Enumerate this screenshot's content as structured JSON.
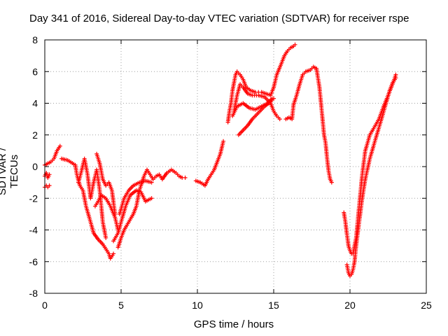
{
  "chart_data": {
    "type": "scatter",
    "title": "Day 341 of 2016, Sidereal Day-to-day VTEC variation (SDTVAR) for receiver rspe",
    "xlabel": "GPS time / hours",
    "ylabel": "SDTVAR / TECUs",
    "xlim": [
      0,
      25
    ],
    "ylim": [
      -8,
      8
    ],
    "xticks": [
      "0",
      "5",
      "10",
      "15",
      "20",
      "25"
    ],
    "yticks": [
      "-8",
      "-6",
      "-4",
      "-2",
      "0",
      "2",
      "4",
      "6",
      "8"
    ],
    "grid": true,
    "marker": "+",
    "color": "#ff0000",
    "series": [
      {
        "x": [
          0.0,
          0.1,
          0.2,
          0.3
        ],
        "y": [
          -0.6,
          -0.4,
          -0.7,
          -0.5
        ]
      },
      {
        "x": [
          0.0,
          0.1,
          0.2,
          0.3
        ],
        "y": [
          -1.3,
          -1.2,
          -1.3,
          -1.2
        ]
      },
      {
        "x": [
          0.0,
          0.2,
          0.4,
          0.6,
          0.8,
          1.0
        ],
        "y": [
          0.1,
          0.2,
          0.3,
          0.5,
          1.0,
          1.3
        ]
      },
      {
        "x": [
          1.1,
          1.5,
          2.0,
          2.1,
          2.3,
          2.5,
          2.7,
          3.0,
          3.2,
          3.5,
          3.8,
          4.0,
          4.2,
          4.3,
          4.5
        ],
        "y": [
          0.5,
          0.4,
          0.1,
          -0.5,
          -1.2,
          -1.5,
          -2.5,
          -3.5,
          -4.2,
          -4.6,
          -4.9,
          -5.2,
          -5.5,
          -5.8,
          -5.5
        ]
      },
      {
        "x": [
          2.2,
          2.4,
          2.6,
          2.8,
          3.0,
          3.2,
          3.4,
          3.6,
          3.8,
          4.0
        ],
        "y": [
          -1.0,
          -0.3,
          0.5,
          -0.5,
          -2.0,
          -1.0,
          -0.2,
          -1.5,
          -3.5,
          -4.5
        ]
      },
      {
        "x": [
          3.3,
          3.5,
          3.7,
          4.0,
          4.3,
          4.6,
          4.8
        ],
        "y": [
          -2.5,
          -2.2,
          -1.8,
          -2.0,
          -2.5,
          -3.2,
          -4.0
        ]
      },
      {
        "x": [
          3.4,
          3.6,
          3.8,
          4.0,
          4.2,
          4.4,
          4.6
        ],
        "y": [
          0.8,
          0.2,
          -0.8,
          -1.2,
          -1.0,
          -1.5,
          -3.0
        ]
      },
      {
        "x": [
          4.8,
          5.0,
          5.2,
          5.5,
          5.8,
          6.0,
          6.2,
          6.5,
          6.7,
          6.9,
          7.1,
          7.3,
          7.5,
          7.7,
          8.0,
          8.3,
          8.6,
          8.8,
          9.0,
          9.2
        ],
        "y": [
          -5.1,
          -4.5,
          -4.0,
          -3.5,
          -3.0,
          -2.5,
          -1.5,
          -0.6,
          -0.2,
          -0.5,
          -0.8,
          -0.6,
          -0.5,
          -0.8,
          -0.4,
          -0.2,
          -0.4,
          -0.6,
          -0.7,
          -0.7
        ]
      },
      {
        "x": [
          4.5,
          4.8,
          5.0,
          5.3,
          5.6,
          6.0,
          6.3,
          6.6,
          7.0
        ],
        "y": [
          -4.7,
          -4.2,
          -3.5,
          -2.5,
          -1.8,
          -1.5,
          -1.6,
          -2.2,
          -2.0
        ]
      },
      {
        "x": [
          4.9,
          5.2,
          5.5,
          5.8,
          6.2,
          6.6,
          7.0
        ],
        "y": [
          -3.0,
          -2.0,
          -1.5,
          -1.2,
          -1.0,
          -0.9,
          -1.0
        ]
      },
      {
        "x": [
          9.9,
          10.2,
          10.5,
          10.7,
          10.9,
          11.1,
          11.3,
          11.5,
          11.7
        ],
        "y": [
          -0.9,
          -1.0,
          -1.2,
          -0.8,
          -0.5,
          -0.2,
          0.3,
          0.8,
          1.6
        ]
      },
      {
        "x": [
          12.0,
          12.1,
          12.2,
          12.3,
          12.4,
          12.5,
          12.6,
          12.8,
          13.0,
          13.2,
          13.5,
          13.8,
          14.0,
          14.2,
          14.5,
          14.8,
          15.0,
          15.2,
          15.5,
          15.7,
          15.9,
          16.0,
          16.1,
          16.3,
          16.4
        ],
        "y": [
          2.8,
          3.5,
          4.0,
          4.8,
          5.3,
          5.8,
          6.0,
          5.8,
          5.5,
          5.0,
          4.8,
          4.7,
          4.7,
          4.7,
          4.6,
          4.5,
          5.0,
          5.8,
          6.5,
          7.0,
          7.3,
          7.4,
          7.5,
          7.6,
          7.7
        ]
      },
      {
        "x": [
          12.4,
          12.6,
          12.8,
          13.0,
          13.3,
          13.6,
          14.0,
          14.4,
          14.8,
          15.0,
          15.2,
          15.4
        ],
        "y": [
          3.5,
          4.5,
          5.2,
          5.0,
          4.6,
          4.5,
          4.5,
          4.4,
          4.0,
          3.5,
          3.2,
          3.0
        ]
      },
      {
        "x": [
          12.3,
          12.6,
          13.0,
          13.4,
          13.8,
          14.2,
          14.6,
          14.9
        ],
        "y": [
          3.2,
          3.8,
          4.0,
          3.7,
          3.6,
          3.8,
          4.0,
          4.3
        ]
      },
      {
        "x": [
          12.7,
          13.0,
          13.3,
          13.6,
          14.0,
          14.4,
          14.8,
          15.0
        ],
        "y": [
          2.0,
          2.3,
          2.6,
          3.0,
          3.4,
          3.8,
          4.1,
          4.3
        ]
      },
      {
        "x": [
          15.8,
          16.0,
          16.2,
          16.3,
          16.5,
          16.7,
          16.9,
          17.1,
          17.4,
          17.6,
          17.8,
          18.0,
          18.1,
          18.2,
          18.3,
          18.4,
          18.5,
          18.6,
          18.7,
          18.8
        ],
        "y": [
          3.0,
          3.1,
          3.0,
          3.9,
          4.5,
          5.2,
          5.8,
          6.0,
          6.1,
          6.3,
          6.2,
          5.0,
          4.0,
          3.0,
          2.0,
          1.5,
          0.5,
          -0.3,
          -0.8,
          -1.0
        ]
      },
      {
        "x": [
          19.6,
          19.7,
          19.8,
          19.9,
          20.0,
          20.1,
          20.2,
          20.4,
          20.6,
          20.8,
          21.0,
          21.3,
          21.6,
          21.9,
          22.2,
          22.5,
          22.7,
          22.9,
          23.0
        ],
        "y": [
          -2.9,
          -3.5,
          -4.3,
          -5.0,
          -5.3,
          -5.5,
          -5.5,
          -4.5,
          -2.5,
          -0.5,
          1.0,
          2.0,
          2.5,
          3.0,
          3.8,
          4.5,
          5.0,
          5.5,
          5.8
        ]
      },
      {
        "x": [
          19.8,
          19.9,
          20.0,
          20.1,
          20.2,
          20.3,
          20.4,
          20.6,
          20.8,
          21.0,
          21.3,
          21.6,
          22.0,
          22.3,
          22.6,
          22.8,
          23.0
        ],
        "y": [
          -6.2,
          -6.7,
          -6.9,
          -6.8,
          -6.5,
          -6.0,
          -5.0,
          -3.5,
          -2.0,
          -0.8,
          0.5,
          1.5,
          2.8,
          3.8,
          4.8,
          5.3,
          5.6
        ]
      }
    ]
  }
}
